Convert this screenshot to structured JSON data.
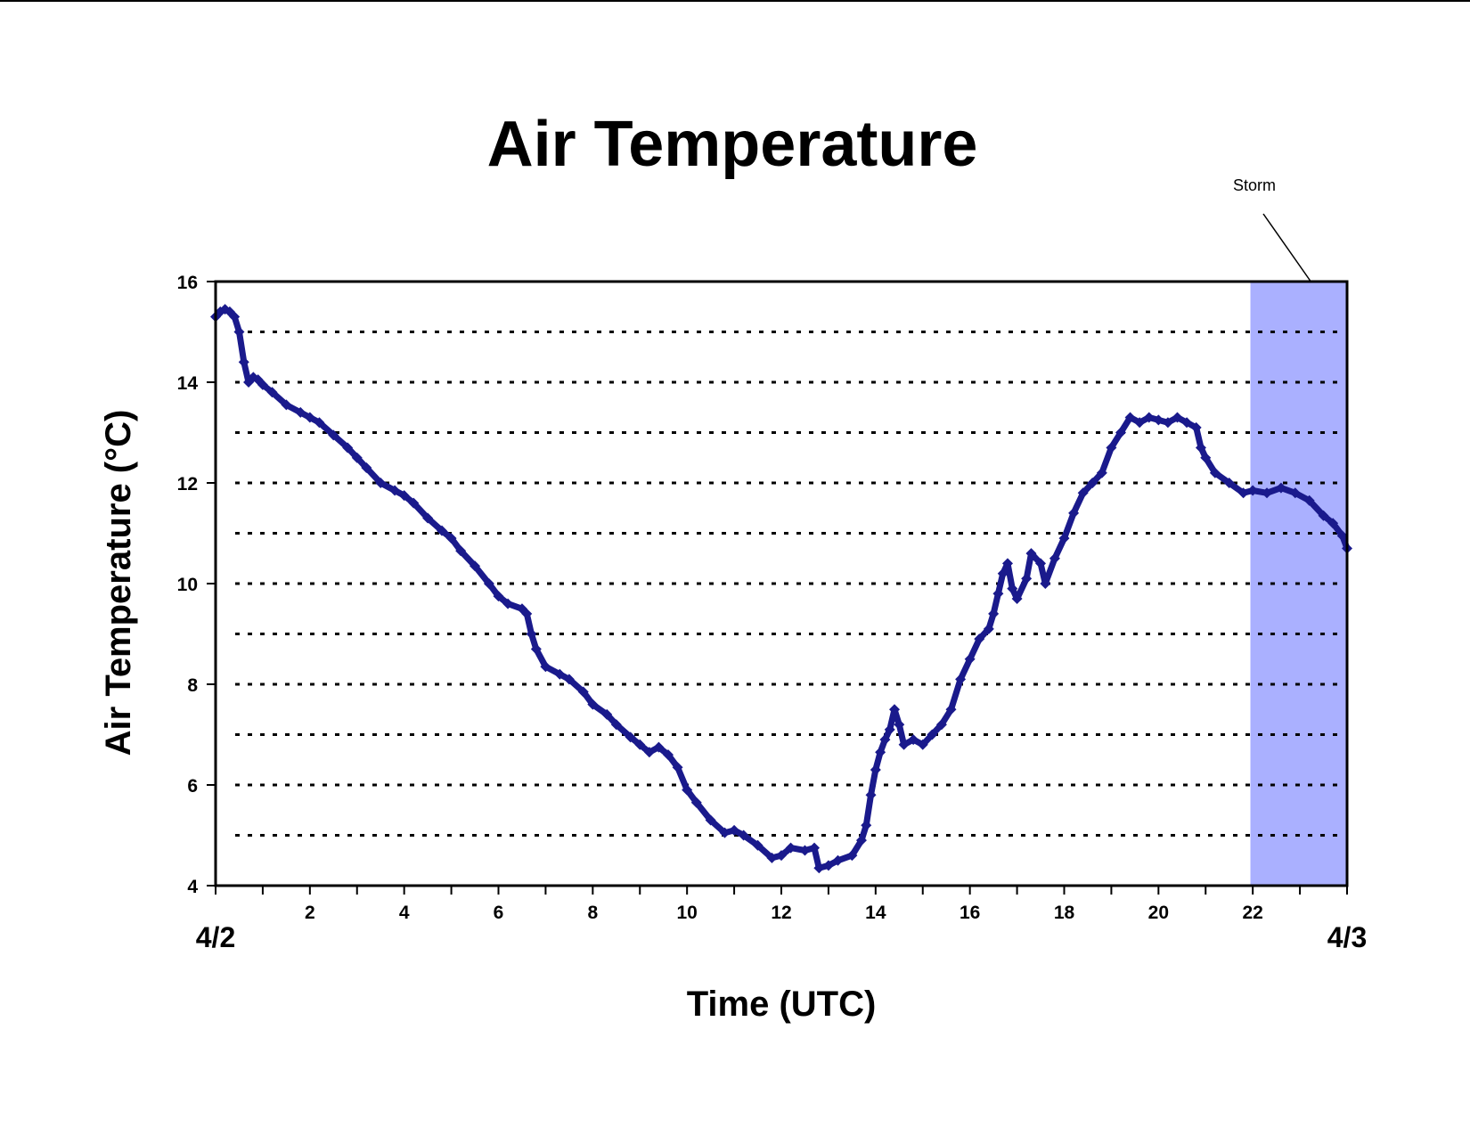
{
  "chart_data": {
    "type": "scatter",
    "title": "Air Temperature",
    "xlabel": "Time (UTC)",
    "ylabel": "Air Temperature (°C)",
    "xlim": [
      0,
      24
    ],
    "ylim": [
      4,
      16
    ],
    "x_ticks": [
      2,
      4,
      6,
      8,
      10,
      12,
      14,
      16,
      18,
      20,
      22
    ],
    "y_ticks": [
      4,
      6,
      8,
      10,
      12,
      14,
      16
    ],
    "gridlines_y": [
      5,
      6,
      7,
      8,
      9,
      10,
      11,
      12,
      13,
      14,
      15
    ],
    "grid": "horizontal-dotted",
    "date_start_label": "4/2",
    "date_end_label": "4/3",
    "marker_color": "#1a1a8c",
    "storm": {
      "label": "Storm",
      "x_start": 21.95,
      "x_end": 24,
      "color": "#aab0ff"
    },
    "points": [
      [
        0.0,
        15.3
      ],
      [
        0.1,
        15.4
      ],
      [
        0.2,
        15.45
      ],
      [
        0.3,
        15.4
      ],
      [
        0.4,
        15.3
      ],
      [
        0.5,
        15.0
      ],
      [
        0.6,
        14.4
      ],
      [
        0.7,
        14.0
      ],
      [
        0.8,
        14.1
      ],
      [
        0.9,
        14.05
      ],
      [
        1.0,
        13.95
      ],
      [
        1.2,
        13.8
      ],
      [
        1.5,
        13.55
      ],
      [
        1.8,
        13.4
      ],
      [
        2.0,
        13.3
      ],
      [
        2.2,
        13.2
      ],
      [
        2.5,
        12.95
      ],
      [
        2.8,
        12.7
      ],
      [
        3.0,
        12.5
      ],
      [
        3.2,
        12.3
      ],
      [
        3.5,
        12.0
      ],
      [
        3.8,
        11.85
      ],
      [
        4.0,
        11.75
      ],
      [
        4.2,
        11.6
      ],
      [
        4.5,
        11.3
      ],
      [
        4.8,
        11.05
      ],
      [
        5.0,
        10.9
      ],
      [
        5.2,
        10.65
      ],
      [
        5.5,
        10.35
      ],
      [
        5.8,
        10.0
      ],
      [
        6.0,
        9.75
      ],
      [
        6.2,
        9.6
      ],
      [
        6.5,
        9.5
      ],
      [
        6.6,
        9.4
      ],
      [
        6.7,
        9.0
      ],
      [
        6.8,
        8.7
      ],
      [
        7.0,
        8.35
      ],
      [
        7.3,
        8.2
      ],
      [
        7.5,
        8.1
      ],
      [
        7.8,
        7.85
      ],
      [
        8.0,
        7.6
      ],
      [
        8.3,
        7.4
      ],
      [
        8.5,
        7.2
      ],
      [
        8.8,
        6.95
      ],
      [
        9.0,
        6.8
      ],
      [
        9.2,
        6.65
      ],
      [
        9.4,
        6.75
      ],
      [
        9.6,
        6.6
      ],
      [
        9.8,
        6.35
      ],
      [
        10.0,
        5.9
      ],
      [
        10.2,
        5.65
      ],
      [
        10.5,
        5.3
      ],
      [
        10.8,
        5.05
      ],
      [
        11.0,
        5.1
      ],
      [
        11.2,
        5.0
      ],
      [
        11.5,
        4.8
      ],
      [
        11.8,
        4.55
      ],
      [
        12.0,
        4.6
      ],
      [
        12.2,
        4.75
      ],
      [
        12.5,
        4.7
      ],
      [
        12.7,
        4.75
      ],
      [
        12.8,
        4.35
      ],
      [
        13.0,
        4.4
      ],
      [
        13.2,
        4.5
      ],
      [
        13.5,
        4.6
      ],
      [
        13.7,
        4.9
      ],
      [
        13.8,
        5.2
      ],
      [
        13.9,
        5.8
      ],
      [
        14.0,
        6.3
      ],
      [
        14.1,
        6.65
      ],
      [
        14.2,
        6.9
      ],
      [
        14.3,
        7.1
      ],
      [
        14.4,
        7.5
      ],
      [
        14.5,
        7.2
      ],
      [
        14.6,
        6.8
      ],
      [
        14.8,
        6.9
      ],
      [
        15.0,
        6.8
      ],
      [
        15.2,
        7.0
      ],
      [
        15.4,
        7.2
      ],
      [
        15.6,
        7.5
      ],
      [
        15.8,
        8.1
      ],
      [
        16.0,
        8.5
      ],
      [
        16.2,
        8.9
      ],
      [
        16.4,
        9.1
      ],
      [
        16.5,
        9.4
      ],
      [
        16.6,
        9.8
      ],
      [
        16.7,
        10.2
      ],
      [
        16.8,
        10.4
      ],
      [
        16.9,
        9.9
      ],
      [
        17.0,
        9.7
      ],
      [
        17.2,
        10.1
      ],
      [
        17.3,
        10.6
      ],
      [
        17.5,
        10.4
      ],
      [
        17.6,
        10.0
      ],
      [
        17.8,
        10.5
      ],
      [
        18.0,
        10.9
      ],
      [
        18.2,
        11.4
      ],
      [
        18.4,
        11.8
      ],
      [
        18.6,
        12.0
      ],
      [
        18.8,
        12.2
      ],
      [
        19.0,
        12.7
      ],
      [
        19.2,
        13.0
      ],
      [
        19.4,
        13.3
      ],
      [
        19.6,
        13.2
      ],
      [
        19.8,
        13.3
      ],
      [
        20.0,
        13.25
      ],
      [
        20.2,
        13.2
      ],
      [
        20.4,
        13.3
      ],
      [
        20.6,
        13.2
      ],
      [
        20.8,
        13.1
      ],
      [
        20.9,
        12.7
      ],
      [
        21.0,
        12.5
      ],
      [
        21.2,
        12.2
      ],
      [
        21.5,
        12.0
      ],
      [
        21.8,
        11.8
      ],
      [
        22.0,
        11.85
      ],
      [
        22.3,
        11.8
      ],
      [
        22.6,
        11.9
      ],
      [
        22.9,
        11.8
      ],
      [
        23.2,
        11.65
      ],
      [
        23.5,
        11.35
      ],
      [
        23.7,
        11.2
      ],
      [
        23.9,
        10.95
      ],
      [
        24.0,
        10.7
      ]
    ]
  }
}
